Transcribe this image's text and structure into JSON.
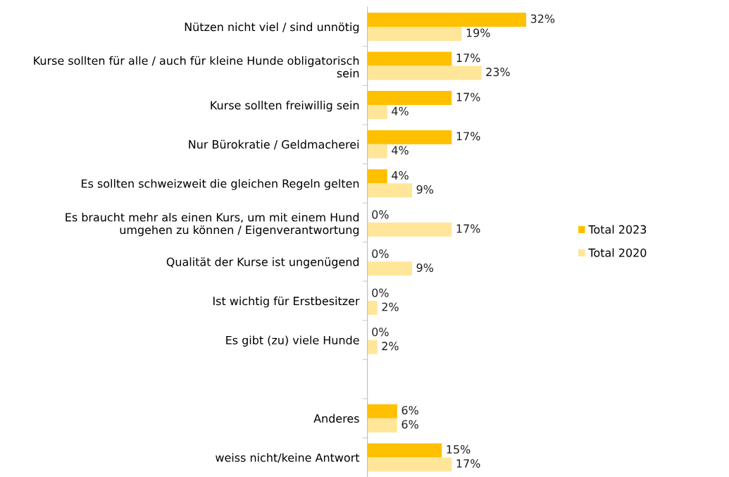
{
  "chart_data": {
    "type": "bar",
    "orientation": "horizontal",
    "categories": [
      "Nützen nicht viel / sind unnötig",
      "Kurse sollten für alle / auch für kleine Hunde obligatorisch\nsein",
      "Kurse sollten freiwillig sein",
      "Nur Bürokratie / Geldmacherei",
      "Es sollten schweizweit die gleichen Regeln gelten",
      "Es braucht mehr als einen Kurs, um mit einem Hund\numgehen zu können / Eigenverantwortung",
      "Qualität der Kurse ist ungenügend",
      "Ist wichtig für Erstbesitzer",
      "Es gibt (zu) viele Hunde",
      null,
      "Anderes",
      "weiss nicht/keine Antwort"
    ],
    "series": [
      {
        "name": "Total 2023",
        "color": "#ffc000",
        "values": [
          32,
          17,
          17,
          17,
          4,
          0,
          0,
          0,
          0,
          null,
          6,
          15
        ],
        "value_labels": [
          "32%",
          "17%",
          "17%",
          "17%",
          "4%",
          "0%",
          "0%",
          "0%",
          "0%",
          null,
          "6%",
          "15%"
        ]
      },
      {
        "name": "Total 2020",
        "color": "#ffe699",
        "values": [
          19,
          23,
          4,
          4,
          9,
          17,
          9,
          2,
          2,
          null,
          6,
          17
        ],
        "value_labels": [
          "19%",
          "23%",
          "4%",
          "4%",
          "9%",
          "17%",
          "9%",
          "2%",
          "2%",
          null,
          "6%",
          "17%"
        ]
      }
    ],
    "legend": "right",
    "grid": false
  }
}
